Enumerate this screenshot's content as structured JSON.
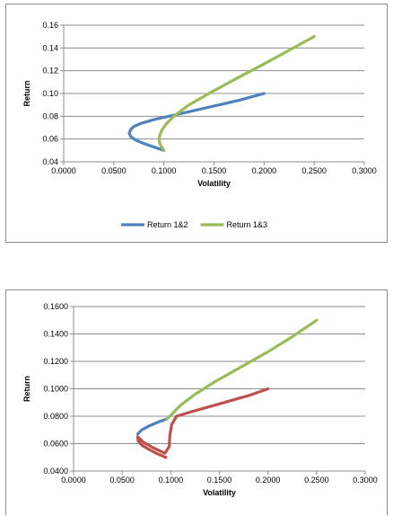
{
  "colors": {
    "series1": "#4f81bd",
    "series2": "#9bbb59",
    "series3": "#c0504d",
    "grid": "#8c8c8c",
    "axis": "#8c8c8c"
  },
  "chart_data": [
    {
      "type": "line",
      "xlabel": "Volatility",
      "ylabel": "Return",
      "xlim": [
        0,
        0.3
      ],
      "ylim": [
        0.04,
        0.16
      ],
      "xticks": [
        "0.0000",
        "0.0500",
        "0.1000",
        "0.1500",
        "0.2000",
        "0.2500",
        "0.3000"
      ],
      "yticks": [
        "0.04",
        "0.06",
        "0.08",
        "0.10",
        "0.12",
        "0.14",
        "0.16"
      ],
      "grid": true,
      "legend": "bottom",
      "series": [
        {
          "name": "Return 1&2",
          "color": "#4f81bd",
          "x": [
            0.1,
            0.09,
            0.08,
            0.072,
            0.067,
            0.0655,
            0.0665,
            0.07,
            0.078,
            0.09,
            0.105,
            0.125,
            0.15,
            0.175,
            0.2
          ],
          "y": [
            0.05,
            0.053,
            0.056,
            0.059,
            0.062,
            0.065,
            0.068,
            0.071,
            0.074,
            0.077,
            0.08,
            0.084,
            0.089,
            0.094,
            0.1
          ]
        },
        {
          "name": "Return 1&3",
          "color": "#9bbb59",
          "x": [
            0.1,
            0.097,
            0.0955,
            0.0955,
            0.0975,
            0.102,
            0.11,
            0.125,
            0.145,
            0.17,
            0.2,
            0.225,
            0.25
          ],
          "y": [
            0.05,
            0.054,
            0.058,
            0.062,
            0.067,
            0.073,
            0.08,
            0.09,
            0.1,
            0.112,
            0.126,
            0.138,
            0.15
          ]
        }
      ]
    },
    {
      "type": "line",
      "xlabel": "Volatility",
      "ylabel": "Return",
      "xlim": [
        0,
        0.3
      ],
      "ylim": [
        0.04,
        0.16
      ],
      "xticks": [
        "0.0000",
        "0.0500",
        "0.1000",
        "0.1500",
        "0.2000",
        "0.2500",
        "0.3000"
      ],
      "yticks": [
        "0.0400",
        "0.0600",
        "0.0800",
        "0.1000",
        "0.1200",
        "0.1400",
        "0.1600"
      ],
      "grid": true,
      "legend": "none",
      "series": [
        {
          "color": "#4f81bd",
          "x": [
            0.066,
            0.07,
            0.078,
            0.088,
            0.096
          ],
          "y": [
            0.067,
            0.07,
            0.073,
            0.076,
            0.078
          ]
        },
        {
          "color": "#9bbb59",
          "x": [
            0.096,
            0.102,
            0.11,
            0.125,
            0.145,
            0.17,
            0.2,
            0.225,
            0.25
          ],
          "y": [
            0.078,
            0.082,
            0.088,
            0.096,
            0.105,
            0.115,
            0.127,
            0.138,
            0.15
          ]
        },
        {
          "color": "#c0504d",
          "x": [
            0.095,
            0.085,
            0.077,
            0.07,
            0.0665,
            0.066,
            0.072,
            0.082,
            0.094,
            0.0985,
            0.099,
            0.101,
            0.106,
            0.12,
            0.14,
            0.16,
            0.18,
            0.2
          ],
          "y": [
            0.05,
            0.053,
            0.056,
            0.059,
            0.062,
            0.065,
            0.061,
            0.057,
            0.053,
            0.058,
            0.066,
            0.074,
            0.08,
            0.083,
            0.087,
            0.091,
            0.095,
            0.1
          ]
        }
      ]
    }
  ]
}
